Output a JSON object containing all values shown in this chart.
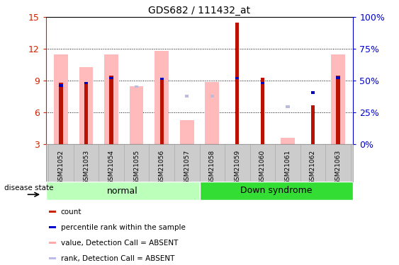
{
  "title": "GDS682 / 111432_at",
  "samples": [
    "GSM21052",
    "GSM21053",
    "GSM21054",
    "GSM21055",
    "GSM21056",
    "GSM21057",
    "GSM21058",
    "GSM21059",
    "GSM21060",
    "GSM21061",
    "GSM21062",
    "GSM21063"
  ],
  "red_bars": [
    8.8,
    8.85,
    9.5,
    null,
    9.3,
    null,
    null,
    14.5,
    9.3,
    null,
    6.7,
    9.5
  ],
  "pink_bars": [
    11.5,
    10.3,
    11.5,
    8.5,
    11.8,
    5.3,
    8.9,
    null,
    null,
    3.6,
    null,
    11.5
  ],
  "blue_squares": [
    8.55,
    8.8,
    9.25,
    null,
    9.2,
    null,
    null,
    9.25,
    8.8,
    null,
    7.9,
    9.3
  ],
  "light_blue_squares": [
    null,
    null,
    null,
    8.45,
    null,
    7.55,
    7.55,
    null,
    null,
    6.55,
    null,
    null
  ],
  "ylim": [
    3,
    15
  ],
  "yticks": [
    3,
    6,
    9,
    12,
    15
  ],
  "right_ytick_labels": [
    "0%",
    "25%",
    "50%",
    "75%",
    "100%"
  ],
  "right_ytick_vals": [
    3,
    6,
    9,
    12,
    15
  ],
  "ylabel_color": "#cc2200",
  "right_ylabel_color": "#0000cc",
  "normal_label": "normal",
  "down_label": "Down syndrome",
  "disease_state_label": "disease state",
  "legend_items": [
    {
      "color": "#cc2200",
      "label": "count"
    },
    {
      "color": "#0000cc",
      "label": "percentile rank within the sample"
    },
    {
      "color": "#ffaaaa",
      "label": "value, Detection Call = ABSENT"
    },
    {
      "color": "#bbbbee",
      "label": "rank, Detection Call = ABSENT"
    }
  ],
  "red_color": "#bb1100",
  "pink_color": "#ffbbbb",
  "blue_color": "#0000bb",
  "light_blue_color": "#bbbbdd",
  "normal_bg": "#bbffbb",
  "down_bg": "#33dd33",
  "label_bg": "#cccccc",
  "grid_color": "#000000",
  "fig_bg": "#ffffff"
}
